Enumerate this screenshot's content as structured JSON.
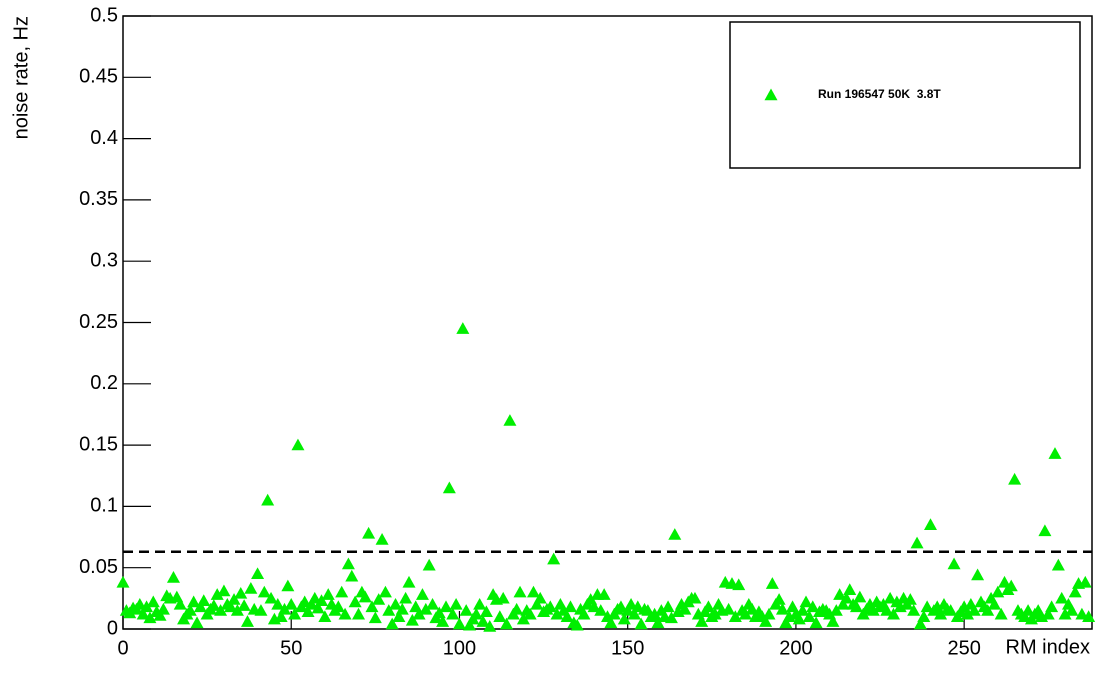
{
  "chart_data": {
    "type": "scatter",
    "xlabel": "RM index",
    "ylabel": "noise rate, Hz",
    "x": [
      0,
      1,
      2,
      3,
      4,
      5,
      6,
      7,
      8,
      9,
      10,
      11,
      12,
      13,
      14,
      15,
      16,
      17,
      18,
      19,
      20,
      21,
      22,
      23,
      24,
      25,
      26,
      27,
      28,
      29,
      30,
      31,
      32,
      33,
      34,
      35,
      36,
      37,
      38,
      39,
      40,
      41,
      42,
      43,
      44,
      45,
      46,
      47,
      48,
      49,
      50,
      51,
      52,
      53,
      54,
      55,
      56,
      57,
      58,
      59,
      60,
      61,
      62,
      63,
      64,
      65,
      66,
      67,
      68,
      69,
      70,
      71,
      72,
      73,
      74,
      75,
      76,
      77,
      78,
      79,
      80,
      81,
      82,
      83,
      84,
      85,
      86,
      87,
      88,
      89,
      90,
      91,
      92,
      93,
      94,
      95,
      96,
      97,
      98,
      99,
      100,
      101,
      102,
      103,
      104,
      105,
      106,
      107,
      108,
      109,
      110,
      111,
      112,
      113,
      114,
      115,
      116,
      117,
      118,
      119,
      120,
      121,
      122,
      123,
      124,
      125,
      126,
      127,
      128,
      129,
      130,
      131,
      132,
      133,
      134,
      135,
      136,
      137,
      138,
      139,
      140,
      141,
      142,
      143,
      144,
      145,
      146,
      147,
      148,
      149,
      150,
      151,
      152,
      153,
      154,
      155,
      156,
      157,
      158,
      159,
      160,
      161,
      162,
      163,
      164,
      165,
      166,
      167,
      168,
      169,
      170,
      171,
      172,
      173,
      174,
      175,
      176,
      177,
      178,
      179,
      180,
      181,
      182,
      183,
      184,
      185,
      186,
      187,
      188,
      189,
      190,
      191,
      192,
      193,
      194,
      195,
      196,
      197,
      198,
      199,
      200,
      201,
      202,
      203,
      204,
      205,
      206,
      207,
      208,
      209,
      210,
      211,
      212,
      213,
      214,
      215,
      216,
      217,
      218,
      219,
      220,
      221,
      222,
      223,
      224,
      225,
      226,
      227,
      228,
      229,
      230,
      231,
      232,
      233,
      234,
      235,
      236,
      237,
      238,
      239,
      240,
      241,
      242,
      243,
      244,
      245,
      246,
      247,
      248,
      249,
      250,
      251,
      252,
      253,
      254,
      255,
      256,
      257,
      258,
      259,
      260,
      261,
      262,
      263,
      264,
      265,
      266,
      267,
      268,
      269,
      270,
      271,
      272,
      273,
      274,
      275,
      276,
      277,
      278,
      279,
      280,
      281,
      282,
      283,
      284,
      285,
      286,
      287
    ],
    "series": [
      {
        "name": "Run 196547 50K  3.8T",
        "color": "#00ee00",
        "values": [
          0.038,
          0.015,
          0.013,
          0.017,
          0.016,
          0.02,
          0.012,
          0.018,
          0.009,
          0.022,
          0.014,
          0.011,
          0.016,
          0.027,
          0.025,
          0.042,
          0.026,
          0.02,
          0.008,
          0.012,
          0.015,
          0.022,
          0.005,
          0.018,
          0.023,
          0.012,
          0.016,
          0.019,
          0.028,
          0.015,
          0.031,
          0.02,
          0.018,
          0.024,
          0.015,
          0.029,
          0.019,
          0.006,
          0.033,
          0.016,
          0.045,
          0.015,
          0.03,
          0.105,
          0.025,
          0.008,
          0.02,
          0.01,
          0.016,
          0.035,
          0.02,
          0.012,
          0.15,
          0.018,
          0.022,
          0.014,
          0.02,
          0.025,
          0.017,
          0.023,
          0.01,
          0.028,
          0.02,
          0.015,
          0.018,
          0.03,
          0.012,
          0.053,
          0.043,
          0.022,
          0.012,
          0.03,
          0.026,
          0.078,
          0.018,
          0.009,
          0.024,
          0.073,
          0.03,
          0.015,
          0.004,
          0.02,
          0.01,
          0.016,
          0.025,
          0.038,
          0.007,
          0.018,
          0.012,
          0.028,
          0.016,
          0.052,
          0.02,
          0.009,
          0.013,
          0.006,
          0.018,
          0.115,
          0.012,
          0.02,
          0.004,
          0.245,
          0.015,
          0.003,
          0.008,
          0.012,
          0.02,
          0.006,
          0.014,
          0.002,
          0.028,
          0.024,
          0.01,
          0.025,
          0.004,
          0.17,
          0.012,
          0.016,
          0.03,
          0.008,
          0.015,
          0.012,
          0.03,
          0.02,
          0.025,
          0.014,
          0.016,
          0.018,
          0.057,
          0.012,
          0.02,
          0.015,
          0.01,
          0.018,
          0.005,
          0.003,
          0.016,
          0.012,
          0.02,
          0.024,
          0.018,
          0.028,
          0.015,
          0.028,
          0.01,
          0.005,
          0.012,
          0.016,
          0.018,
          0.008,
          0.015,
          0.02,
          0.012,
          0.018,
          0.004,
          0.016,
          0.015,
          0.01,
          0.012,
          0.005,
          0.015,
          0.01,
          0.018,
          0.009,
          0.077,
          0.014,
          0.02,
          0.016,
          0.022,
          0.025,
          0.025,
          0.012,
          0.006,
          0.014,
          0.018,
          0.01,
          0.012,
          0.02,
          0.015,
          0.038,
          0.016,
          0.037,
          0.01,
          0.036,
          0.015,
          0.012,
          0.02,
          0.016,
          0.01,
          0.014,
          0.01,
          0.006,
          0.012,
          0.037,
          0.02,
          0.024,
          0.016,
          0.005,
          0.01,
          0.018,
          0.012,
          0.008,
          0.015,
          0.022,
          0.01,
          0.018,
          0.005,
          0.014,
          0.016,
          0.015,
          0.012,
          0.006,
          0.015,
          0.028,
          0.02,
          0.025,
          0.032,
          0.02,
          0.018,
          0.026,
          0.012,
          0.016,
          0.02,
          0.015,
          0.022,
          0.018,
          0.02,
          0.015,
          0.025,
          0.012,
          0.022,
          0.018,
          0.025,
          0.02,
          0.024,
          0.015,
          0.07,
          0.004,
          0.01,
          0.018,
          0.085,
          0.015,
          0.018,
          0.012,
          0.02,
          0.016,
          0.015,
          0.053,
          0.01,
          0.014,
          0.018,
          0.012,
          0.02,
          0.015,
          0.044,
          0.022,
          0.018,
          0.015,
          0.025,
          0.02,
          0.03,
          0.012,
          0.038,
          0.032,
          0.035,
          0.122,
          0.015,
          0.012,
          0.01,
          0.015,
          0.008,
          0.012,
          0.015,
          0.01,
          0.08,
          0.012,
          0.018,
          0.143,
          0.052,
          0.025,
          0.012,
          0.02,
          0.015,
          0.03,
          0.037,
          0.012,
          0.038,
          0.01
        ]
      }
    ],
    "reference_line": 0.063,
    "xlim": [
      0,
      288
    ],
    "ylim": [
      0,
      0.5
    ],
    "xticks": [
      0,
      50,
      100,
      150,
      200,
      250
    ],
    "yticks": [
      0,
      0.05,
      0.1,
      0.15,
      0.2,
      0.25,
      0.3,
      0.35,
      0.4,
      0.45,
      0.5
    ],
    "legend": "top-right"
  }
}
